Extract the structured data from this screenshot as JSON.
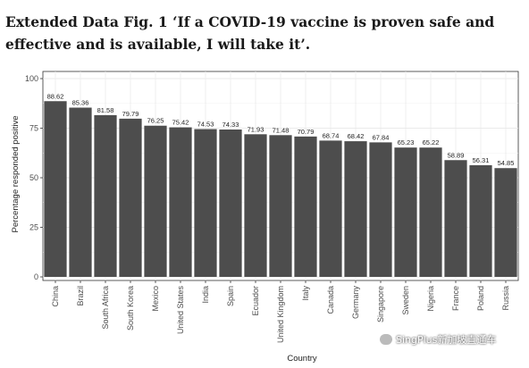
{
  "caption": "Extended Data Fig. 1 ‘If a COVID-19 vaccine is proven safe and effective and is available, I will take it’.",
  "watermark": "SingPlus新加坡直通车",
  "chart_data": {
    "type": "bar",
    "categories": [
      "China",
      "Brazil",
      "South Africa",
      "South Korea",
      "Mexico",
      "United States",
      "India",
      "Spain",
      "Ecuador",
      "United Kingdom",
      "Italy",
      "Canada",
      "Germany",
      "Singapore",
      "Sweden",
      "Nigeria",
      "France",
      "Poland",
      "Russia"
    ],
    "values": [
      88.62,
      85.36,
      81.58,
      79.79,
      76.25,
      75.42,
      74.53,
      74.33,
      71.93,
      71.48,
      70.79,
      68.74,
      68.42,
      67.84,
      65.23,
      65.22,
      58.89,
      56.31,
      54.85
    ],
    "value_labels": [
      "88.62",
      "85.36",
      "81.58",
      "79.79",
      "76.25",
      "75.42",
      "74.53",
      "74.33",
      "71.93",
      "71.48",
      "70.79",
      "68.74",
      "68.42",
      "67.84",
      "65.23",
      "65.22",
      "58.89",
      "56.31",
      "54.85"
    ],
    "xlabel": "Country",
    "ylabel": "Percentage responded positive",
    "ylim": [
      0,
      100
    ],
    "yticks": [
      "0",
      "25",
      "50",
      "75",
      "100"
    ],
    "grid": true,
    "bar_color": "#4d4d4d"
  }
}
